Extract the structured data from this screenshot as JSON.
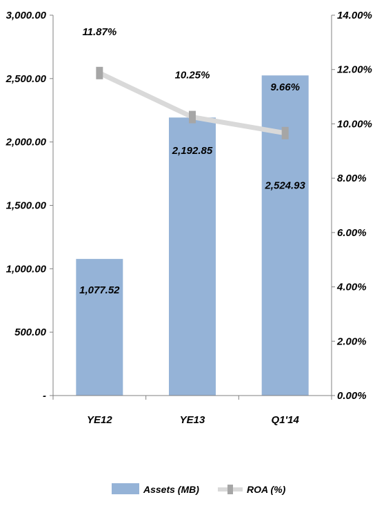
{
  "chart_data": {
    "type": "bar+line",
    "categories": [
      "YE12",
      "YE13",
      "Q1'14"
    ],
    "series": [
      {
        "name": "Assets (MB)",
        "type": "bar",
        "axis": "left",
        "values": [
          1077.52,
          2192.85,
          2524.93
        ],
        "labels": [
          "1,077.52",
          "2,192.85",
          "2,524.93"
        ]
      },
      {
        "name": "ROA (%)",
        "type": "line",
        "axis": "right",
        "values": [
          11.87,
          10.25,
          9.66
        ],
        "labels": [
          "11.87%",
          "10.25%",
          "9.66%"
        ]
      }
    ],
    "left_axis": {
      "ylim": [
        0,
        3000
      ],
      "tick_values": [
        0,
        500,
        1000,
        1500,
        2000,
        2500,
        3000
      ],
      "tick_labels": [
        "-",
        "500.00",
        "1,000.00",
        "1,500.00",
        "2,000.00",
        "2,500.00",
        "3,000.00"
      ]
    },
    "right_axis": {
      "ylim": [
        0,
        14
      ],
      "tick_values": [
        0,
        2,
        4,
        6,
        8,
        10,
        12,
        14
      ],
      "tick_labels": [
        "0.00%",
        "2.00%",
        "4.00%",
        "6.00%",
        "8.00%",
        "10.00%",
        "12.00%",
        "14.00%"
      ]
    },
    "grid": false,
    "legend": "bottom",
    "colors": {
      "bar": "#95B3D7",
      "line": "#D9D9D9",
      "marker": "#A6A6A6",
      "axis": "#808080"
    }
  }
}
